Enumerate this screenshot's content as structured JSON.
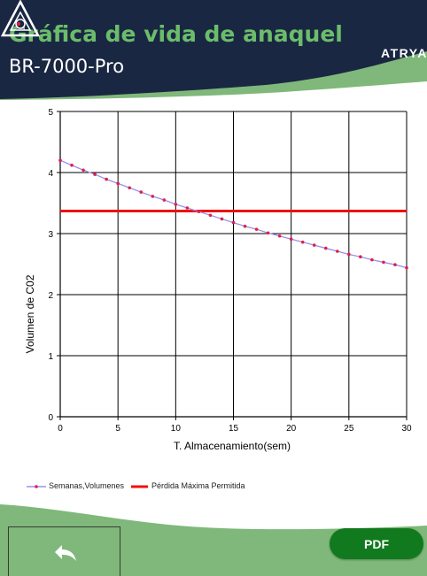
{
  "header": {
    "title": "Gráfica de vida de anaquel",
    "model": "BR-7000-Pro",
    "logo_text": "ATRYA",
    "bg_color": "#1a2742",
    "title_color": "#6bbd6b",
    "wave_color": "#7fb87a"
  },
  "chart_data": {
    "type": "line",
    "xlabel": "T. Almacenamiento(sem)",
    "ylabel": "Volumen de C02",
    "xlim": [
      0,
      30
    ],
    "ylim": [
      0,
      5
    ],
    "x_ticks": [
      "0",
      "5",
      "10",
      "15",
      "20",
      "25",
      "30"
    ],
    "y_ticks": [
      "0",
      "1",
      "2",
      "3",
      "4",
      "5"
    ],
    "grid": true,
    "legend_position": "bottom-left",
    "series": [
      {
        "name": "Semanas,Volumenes",
        "color": "#9a8ff0",
        "marker_color": "#e0204a",
        "x": [
          0,
          1,
          2,
          3,
          4,
          5,
          6,
          7,
          8,
          9,
          10,
          11,
          12,
          13,
          14,
          15,
          16,
          17,
          18,
          19,
          20,
          21,
          22,
          23,
          24,
          25,
          26,
          27,
          28,
          29,
          30
        ],
        "values": [
          4.2,
          4.12,
          4.04,
          3.97,
          3.89,
          3.82,
          3.75,
          3.68,
          3.61,
          3.55,
          3.48,
          3.42,
          3.36,
          3.3,
          3.24,
          3.18,
          3.12,
          3.07,
          3.01,
          2.96,
          2.91,
          2.86,
          2.81,
          2.76,
          2.71,
          2.66,
          2.62,
          2.57,
          2.53,
          2.49,
          2.44
        ]
      },
      {
        "name": "Pérdida Máxima Permitida",
        "color": "#ee1111",
        "x": [
          0,
          30
        ],
        "values": [
          3.37,
          3.37
        ]
      }
    ]
  },
  "footer": {
    "pdf_label": "PDF",
    "back_icon": "back-arrow-icon",
    "pdf_color": "#127a1e",
    "wave_color": "#7fb87a"
  }
}
